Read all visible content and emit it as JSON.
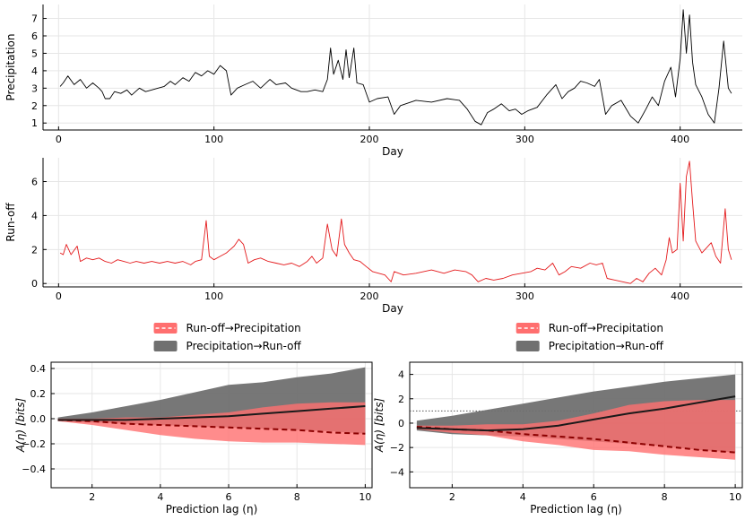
{
  "chart_data": [
    {
      "type": "line",
      "xlabel": "Day",
      "ylabel": "Precipitation",
      "xlim": [
        -10,
        440
      ],
      "ylim": [
        0.6,
        7.8
      ],
      "xticks": [
        0,
        100,
        200,
        300,
        400
      ],
      "yticks": [
        1,
        2,
        3,
        4,
        5,
        6,
        7
      ],
      "grid": true,
      "color": "#000000",
      "series": [
        {
          "points": [
            [
              1,
              3.1
            ],
            [
              3,
              3.3
            ],
            [
              6,
              3.7
            ],
            [
              10,
              3.2
            ],
            [
              14,
              3.5
            ],
            [
              18,
              3.0
            ],
            [
              22,
              3.3
            ],
            [
              26,
              3.0
            ],
            [
              28,
              2.8
            ],
            [
              30,
              2.4
            ],
            [
              33,
              2.4
            ],
            [
              36,
              2.8
            ],
            [
              40,
              2.7
            ],
            [
              44,
              2.9
            ],
            [
              47,
              2.6
            ],
            [
              52,
              3.0
            ],
            [
              56,
              2.8
            ],
            [
              60,
              2.9
            ],
            [
              64,
              3.0
            ],
            [
              68,
              3.1
            ],
            [
              72,
              3.4
            ],
            [
              75,
              3.2
            ],
            [
              80,
              3.6
            ],
            [
              84,
              3.4
            ],
            [
              88,
              3.9
            ],
            [
              92,
              3.7
            ],
            [
              96,
              4.0
            ],
            [
              100,
              3.8
            ],
            [
              104,
              4.3
            ],
            [
              108,
              4.0
            ],
            [
              111,
              2.6
            ],
            [
              115,
              3.0
            ],
            [
              120,
              3.2
            ],
            [
              125,
              3.4
            ],
            [
              130,
              3.0
            ],
            [
              136,
              3.5
            ],
            [
              140,
              3.2
            ],
            [
              146,
              3.3
            ],
            [
              150,
              3.0
            ],
            [
              156,
              2.8
            ],
            [
              160,
              2.8
            ],
            [
              165,
              2.9
            ],
            [
              170,
              2.8
            ],
            [
              173,
              3.5
            ],
            [
              175,
              5.3
            ],
            [
              177,
              3.8
            ],
            [
              180,
              4.6
            ],
            [
              183,
              3.5
            ],
            [
              185,
              5.2
            ],
            [
              187,
              3.6
            ],
            [
              190,
              5.3
            ],
            [
              192,
              3.3
            ],
            [
              196,
              3.2
            ],
            [
              200,
              2.2
            ],
            [
              205,
              2.4
            ],
            [
              212,
              2.5
            ],
            [
              216,
              1.5
            ],
            [
              220,
              2.0
            ],
            [
              230,
              2.3
            ],
            [
              240,
              2.2
            ],
            [
              250,
              2.4
            ],
            [
              258,
              2.3
            ],
            [
              263,
              1.8
            ],
            [
              268,
              1.1
            ],
            [
              272,
              0.9
            ],
            [
              276,
              1.6
            ],
            [
              280,
              1.8
            ],
            [
              285,
              2.1
            ],
            [
              290,
              1.7
            ],
            [
              294,
              1.8
            ],
            [
              298,
              1.5
            ],
            [
              302,
              1.7
            ],
            [
              308,
              1.9
            ],
            [
              314,
              2.6
            ],
            [
              320,
              3.2
            ],
            [
              324,
              2.4
            ],
            [
              328,
              2.8
            ],
            [
              332,
              3.0
            ],
            [
              336,
              3.4
            ],
            [
              340,
              3.3
            ],
            [
              345,
              3.1
            ],
            [
              348,
              3.5
            ],
            [
              352,
              1.5
            ],
            [
              356,
              2.0
            ],
            [
              362,
              2.3
            ],
            [
              368,
              1.4
            ],
            [
              373,
              1.0
            ],
            [
              378,
              1.8
            ],
            [
              382,
              2.5
            ],
            [
              386,
              2.0
            ],
            [
              390,
              3.4
            ],
            [
              394,
              4.2
            ],
            [
              397,
              2.5
            ],
            [
              400,
              4.7
            ],
            [
              402,
              7.5
            ],
            [
              404,
              5.0
            ],
            [
              406,
              7.2
            ],
            [
              408,
              4.5
            ],
            [
              410,
              3.2
            ],
            [
              414,
              2.5
            ],
            [
              418,
              1.5
            ],
            [
              422,
              1.0
            ],
            [
              425,
              3.0
            ],
            [
              428,
              5.7
            ],
            [
              431,
              3.0
            ],
            [
              433,
              2.7
            ]
          ]
        }
      ]
    },
    {
      "type": "line",
      "xlabel": "Day",
      "ylabel": "Run-off",
      "xlim": [
        -10,
        440
      ],
      "ylim": [
        -0.2,
        7.4
      ],
      "xticks": [
        0,
        100,
        200,
        300,
        400
      ],
      "yticks": [
        0,
        2,
        4,
        6
      ],
      "grid": true,
      "color": "#e41a1c",
      "series": [
        {
          "points": [
            [
              1,
              1.8
            ],
            [
              3,
              1.7
            ],
            [
              5,
              2.3
            ],
            [
              8,
              1.7
            ],
            [
              12,
              2.2
            ],
            [
              14,
              1.3
            ],
            [
              18,
              1.5
            ],
            [
              22,
              1.4
            ],
            [
              26,
              1.5
            ],
            [
              30,
              1.3
            ],
            [
              34,
              1.2
            ],
            [
              38,
              1.4
            ],
            [
              42,
              1.3
            ],
            [
              46,
              1.2
            ],
            [
              50,
              1.3
            ],
            [
              55,
              1.2
            ],
            [
              60,
              1.3
            ],
            [
              65,
              1.2
            ],
            [
              70,
              1.3
            ],
            [
              75,
              1.2
            ],
            [
              80,
              1.3
            ],
            [
              85,
              1.1
            ],
            [
              88,
              1.3
            ],
            [
              92,
              1.4
            ],
            [
              95,
              3.7
            ],
            [
              97,
              1.6
            ],
            [
              100,
              1.4
            ],
            [
              104,
              1.6
            ],
            [
              108,
              1.8
            ],
            [
              113,
              2.2
            ],
            [
              116,
              2.6
            ],
            [
              119,
              2.3
            ],
            [
              122,
              1.2
            ],
            [
              126,
              1.4
            ],
            [
              130,
              1.5
            ],
            [
              135,
              1.3
            ],
            [
              140,
              1.2
            ],
            [
              145,
              1.1
            ],
            [
              150,
              1.2
            ],
            [
              155,
              1.0
            ],
            [
              160,
              1.3
            ],
            [
              163,
              1.6
            ],
            [
              166,
              1.2
            ],
            [
              170,
              1.5
            ],
            [
              173,
              3.5
            ],
            [
              176,
              2.0
            ],
            [
              179,
              1.6
            ],
            [
              182,
              3.8
            ],
            [
              184,
              2.3
            ],
            [
              187,
              1.8
            ],
            [
              190,
              1.4
            ],
            [
              194,
              1.3
            ],
            [
              198,
              1.0
            ],
            [
              202,
              0.7
            ],
            [
              206,
              0.6
            ],
            [
              210,
              0.5
            ],
            [
              212,
              0.3
            ],
            [
              214,
              0.1
            ],
            [
              216,
              0.7
            ],
            [
              222,
              0.5
            ],
            [
              230,
              0.6
            ],
            [
              240,
              0.8
            ],
            [
              248,
              0.6
            ],
            [
              255,
              0.8
            ],
            [
              262,
              0.7
            ],
            [
              266,
              0.5
            ],
            [
              270,
              0.1
            ],
            [
              275,
              0.3
            ],
            [
              280,
              0.2
            ],
            [
              286,
              0.3
            ],
            [
              292,
              0.5
            ],
            [
              298,
              0.6
            ],
            [
              304,
              0.7
            ],
            [
              308,
              0.9
            ],
            [
              313,
              0.8
            ],
            [
              318,
              1.2
            ],
            [
              322,
              0.5
            ],
            [
              326,
              0.7
            ],
            [
              330,
              1.0
            ],
            [
              336,
              0.9
            ],
            [
              342,
              1.2
            ],
            [
              346,
              1.1
            ],
            [
              350,
              1.2
            ],
            [
              353,
              0.3
            ],
            [
              358,
              0.2
            ],
            [
              363,
              0.1
            ],
            [
              368,
              0.0
            ],
            [
              372,
              0.3
            ],
            [
              376,
              0.1
            ],
            [
              380,
              0.6
            ],
            [
              384,
              0.9
            ],
            [
              388,
              0.5
            ],
            [
              391,
              1.4
            ],
            [
              393,
              2.7
            ],
            [
              395,
              1.8
            ],
            [
              398,
              2.0
            ],
            [
              400,
              5.9
            ],
            [
              402,
              2.5
            ],
            [
              404,
              6.3
            ],
            [
              406,
              7.2
            ],
            [
              408,
              4.8
            ],
            [
              410,
              2.5
            ],
            [
              414,
              1.8
            ],
            [
              417,
              2.1
            ],
            [
              420,
              2.4
            ],
            [
              423,
              1.6
            ],
            [
              426,
              1.2
            ],
            [
              429,
              4.4
            ],
            [
              431,
              2.0
            ],
            [
              433,
              1.4
            ]
          ]
        }
      ]
    },
    {
      "type": "area",
      "xlabel": "Prediction lag (η)",
      "ylabel": "A(η) [bits]",
      "ylabel_font": "script",
      "xlim": [
        0.8,
        10.2
      ],
      "ylim": [
        -0.55,
        0.45
      ],
      "xticks": [
        2,
        4,
        6,
        8,
        10
      ],
      "yticks": [
        -0.4,
        -0.2,
        0.0,
        0.2,
        0.4
      ],
      "ytick_labels": [
        "−0.4",
        "−0.2",
        "0.0",
        "0.2",
        "0.4"
      ],
      "grid": true,
      "legend_position": "top-center",
      "x": [
        1,
        2,
        3,
        4,
        5,
        6,
        7,
        8,
        9,
        10
      ],
      "series": [
        {
          "name": "Run-off→Precipitation",
          "color": "#ff6f6f",
          "line_style": "dashed",
          "line_color": "#8b0000",
          "mean": [
            -0.01,
            -0.02,
            -0.04,
            -0.05,
            -0.06,
            -0.07,
            -0.08,
            -0.09,
            -0.11,
            -0.12
          ],
          "lower": [
            -0.02,
            -0.05,
            -0.09,
            -0.13,
            -0.16,
            -0.18,
            -0.19,
            -0.19,
            -0.2,
            -0.21
          ],
          "upper": [
            0.0,
            0.0,
            0.01,
            0.01,
            0.03,
            0.05,
            0.09,
            0.12,
            0.13,
            0.13
          ]
        },
        {
          "name": "Precipitation→Run-off",
          "color": "#707070",
          "line_style": "solid",
          "line_color": "#1a1a1a",
          "mean": [
            -0.01,
            -0.01,
            -0.01,
            0.0,
            0.01,
            0.02,
            0.04,
            0.06,
            0.08,
            0.1
          ],
          "lower": [
            -0.02,
            -0.03,
            -0.04,
            -0.05,
            -0.06,
            -0.07,
            -0.08,
            -0.09,
            -0.1,
            -0.12
          ],
          "upper": [
            0.01,
            0.05,
            0.1,
            0.15,
            0.21,
            0.27,
            0.29,
            0.33,
            0.36,
            0.41
          ]
        }
      ]
    },
    {
      "type": "area",
      "xlabel": "Prediction lag (η)",
      "ylabel": "A(η) [bits]",
      "ylabel_font": "script",
      "xlim": [
        0.8,
        10.2
      ],
      "ylim": [
        -5.3,
        5.0
      ],
      "xticks": [
        2,
        4,
        6,
        8,
        10
      ],
      "yticks": [
        -4,
        -2,
        0,
        2,
        4
      ],
      "ytick_labels": [
        "−4",
        "−2",
        "0",
        "2",
        "4"
      ],
      "grid": true,
      "reference_line": 1.0,
      "legend_position": "top-center",
      "x": [
        1,
        2,
        3,
        4,
        5,
        6,
        7,
        8,
        9,
        10
      ],
      "series": [
        {
          "name": "Run-off→Precipitation",
          "color": "#ff6f6f",
          "line_style": "dashed",
          "line_color": "#8b0000",
          "mean": [
            -0.3,
            -0.5,
            -0.6,
            -0.9,
            -1.1,
            -1.3,
            -1.6,
            -1.9,
            -2.2,
            -2.4
          ],
          "lower": [
            -0.5,
            -0.8,
            -1.0,
            -1.5,
            -1.8,
            -2.2,
            -2.3,
            -2.6,
            -2.8,
            -3.0
          ],
          "upper": [
            -0.2,
            -0.2,
            -0.1,
            -0.1,
            0.2,
            0.8,
            1.5,
            1.8,
            1.9,
            1.9
          ]
        },
        {
          "name": "Precipitation→Run-off",
          "color": "#707070",
          "line_style": "solid",
          "line_color": "#1a1a1a",
          "mean": [
            -0.4,
            -0.5,
            -0.6,
            -0.5,
            -0.2,
            0.3,
            0.8,
            1.2,
            1.7,
            2.2
          ],
          "lower": [
            -0.6,
            -0.9,
            -1.0,
            -1.1,
            -1.3,
            -1.5,
            -1.7,
            -1.9,
            -2.2,
            -2.4
          ],
          "upper": [
            0.2,
            0.6,
            1.1,
            1.6,
            2.1,
            2.6,
            3.0,
            3.4,
            3.7,
            4.0
          ]
        }
      ]
    }
  ]
}
